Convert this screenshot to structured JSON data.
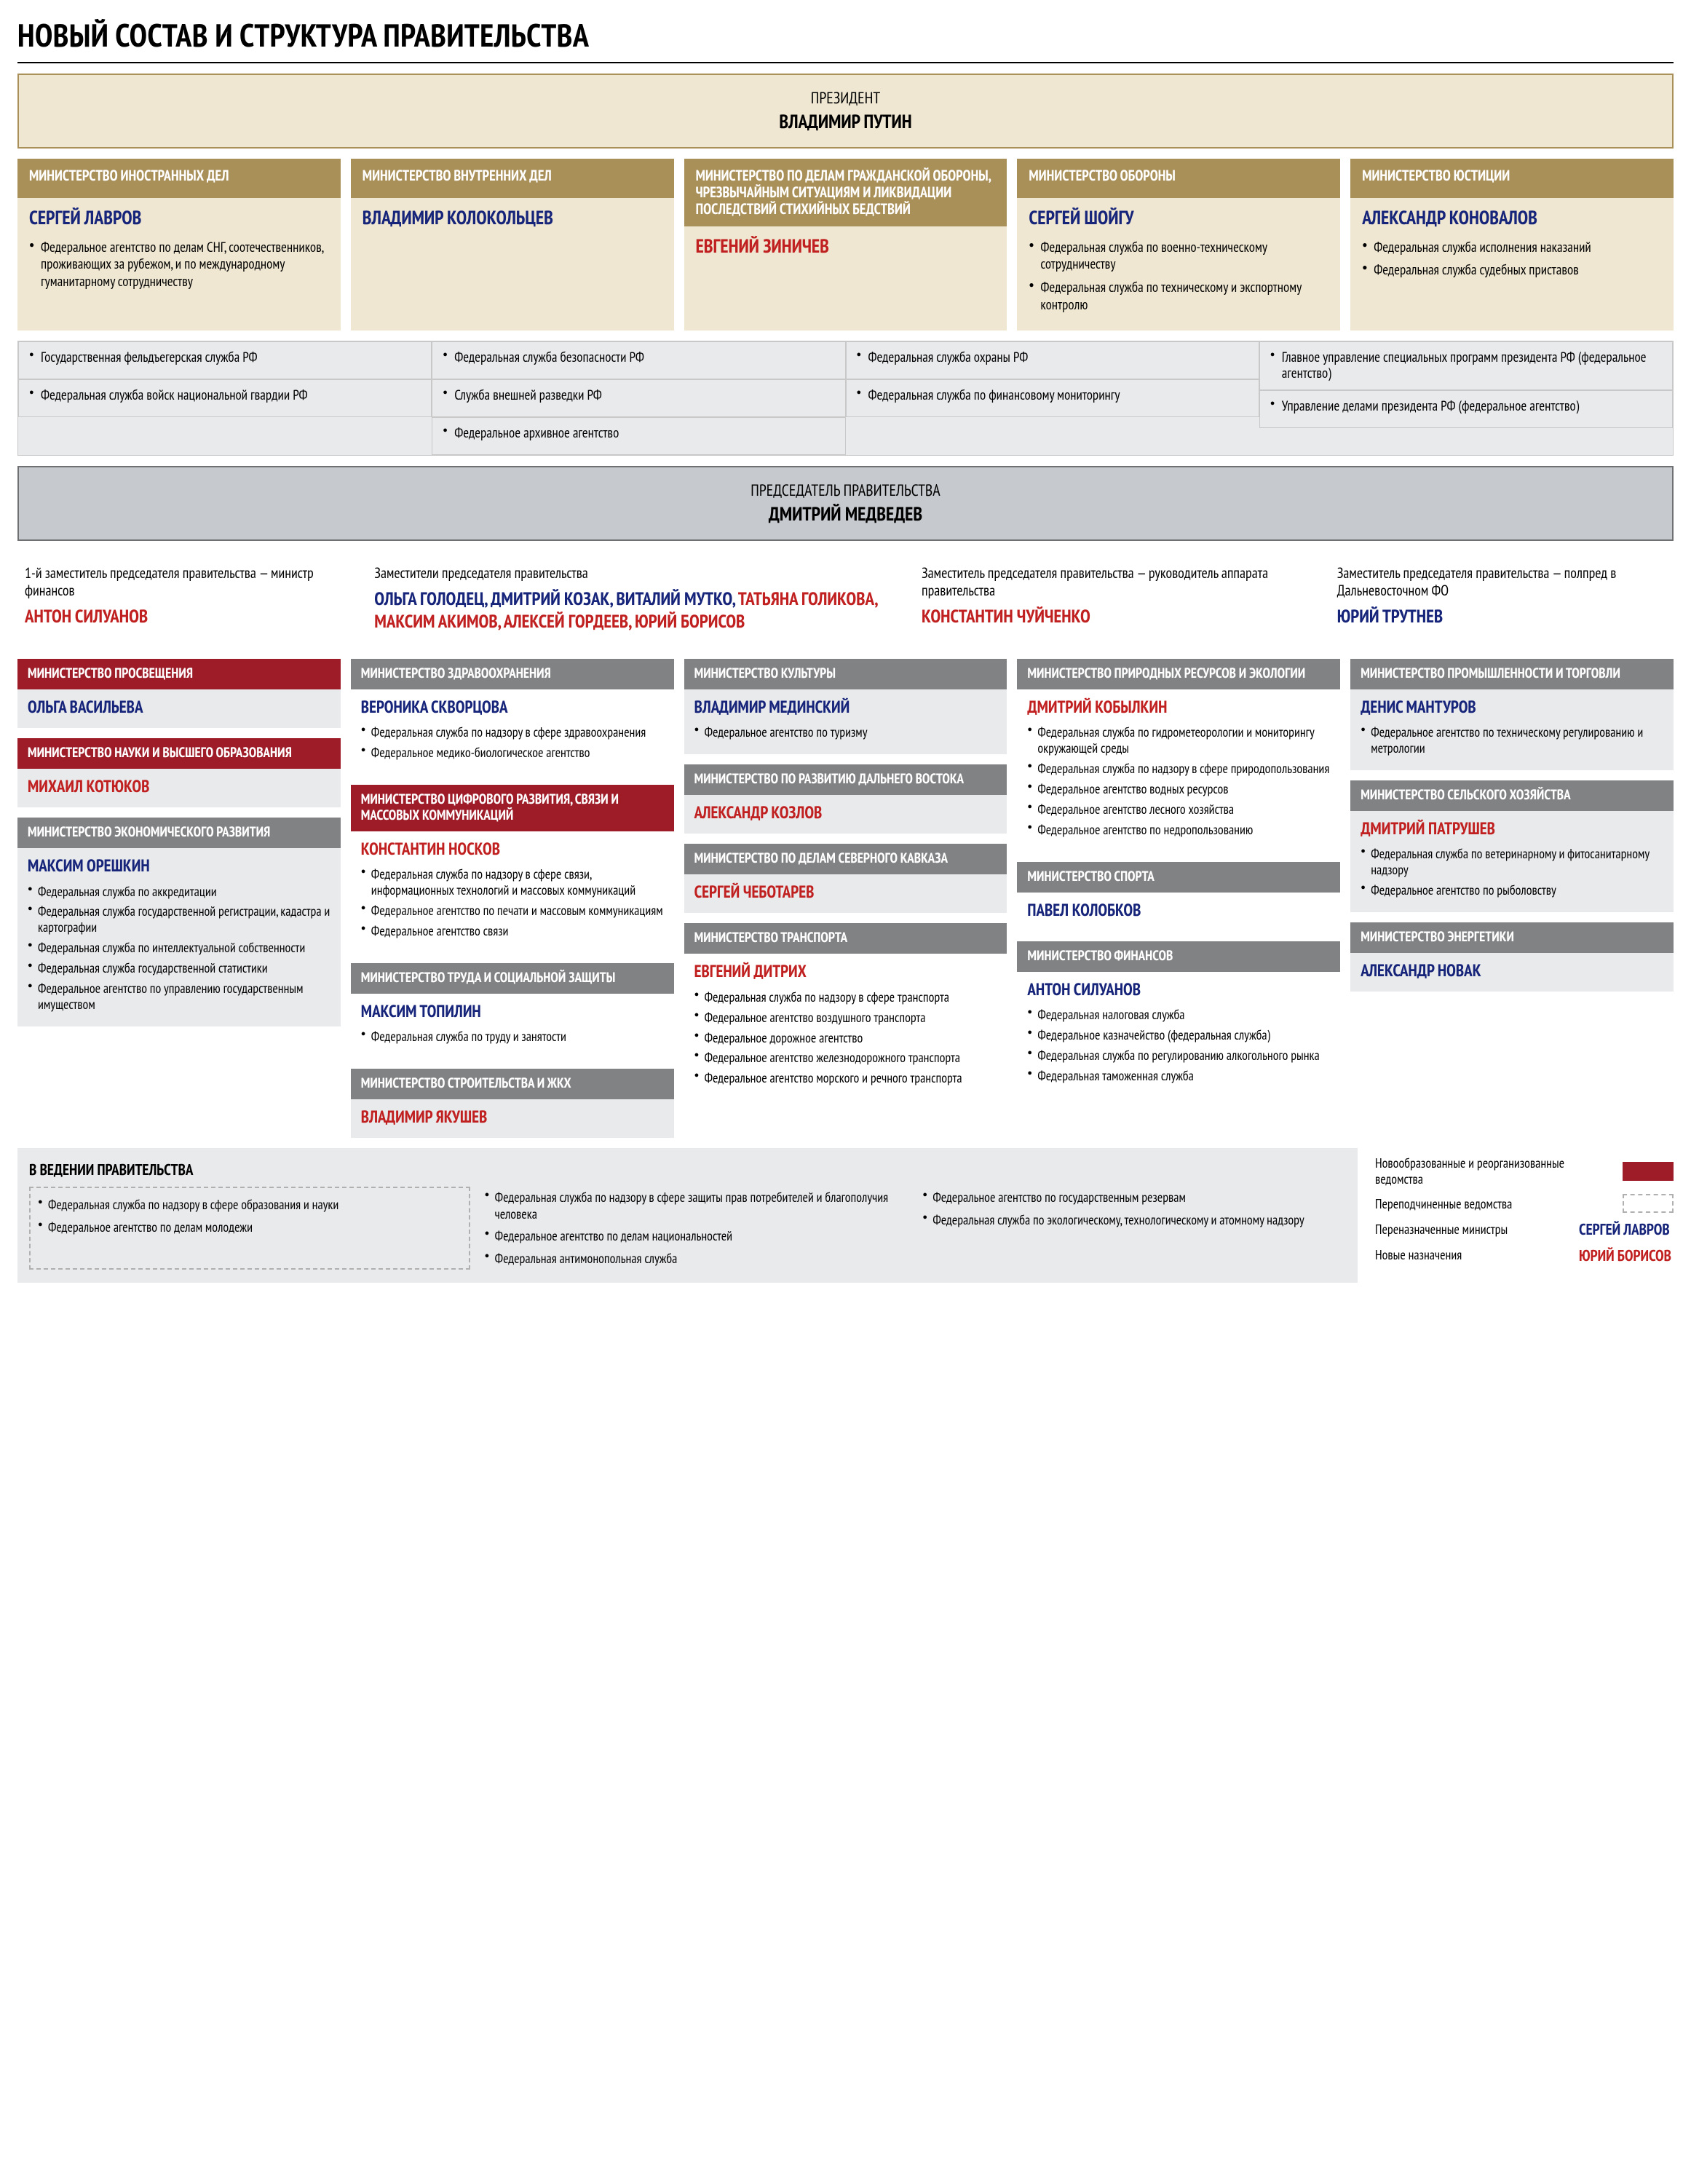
{
  "colors": {
    "gold": "#a98f58",
    "gold_light": "#efe7d1",
    "gold_border": "#a98f58",
    "red": "#9e1b28",
    "red_name": "#c02020",
    "blue": "#16247a",
    "gray_dark": "#6f7072",
    "gray_head": "#818284",
    "gray_banner": "#c6c9cd",
    "gray_body": "#e9eaec",
    "gray_body2": "#e1e2e4",
    "text": "#000000"
  },
  "title": "НОВЫЙ СОСТАВ И СТРУКТУРА ПРАВИТЕЛЬСТВА",
  "president": {
    "role": "ПРЕЗИДЕНТ",
    "name": "ВЛАДИМИР ПУТИН"
  },
  "top_cards": [
    {
      "title": "МИНИСТЕРСТВО ИНОСТРАННЫХ ДЕЛ",
      "name": "СЕРГЕЙ ЛАВРОВ",
      "name_color": "blue",
      "items": [
        "Федеральное агентство по делам СНГ, соотечественников, проживающих за рубежом, и по международному гуманитарному сотрудничеству"
      ]
    },
    {
      "title": "МИНИСТЕРСТВО ВНУТРЕННИХ ДЕЛ",
      "name": "ВЛАДИМИР КОЛОКОЛЬЦЕВ",
      "name_color": "blue",
      "items": []
    },
    {
      "title": "МИНИСТЕРСТВО ПО ДЕЛАМ ГРАЖДАНСКОЙ ОБОРОНЫ, ЧРЕЗВЫЧАЙНЫМ СИТУАЦИЯМ И ЛИКВИДАЦИИ ПОСЛЕДСТВИЙ СТИХИЙНЫХ БЕДСТВИЙ",
      "name": "ЕВГЕНИЙ ЗИНИЧЕВ",
      "name_color": "red",
      "items": []
    },
    {
      "title": "МИНИСТЕРСТВО ОБОРОНЫ",
      "name": "СЕРГЕЙ ШОЙГУ",
      "name_color": "blue",
      "items": [
        "Федеральная служба по военно-техническому сотрудничеству",
        "Федеральная служба по техническому и экспортному контролю"
      ]
    },
    {
      "title": "МИНИСТЕРСТВО ЮСТИЦИИ",
      "name": "АЛЕКСАНДР КОНОВАЛОВ",
      "name_color": "blue",
      "items": [
        "Федеральная служба исполнения наказаний",
        "Федеральная служба судебных приставов"
      ]
    }
  ],
  "strip": [
    [
      "Государственная фельдъегерская служба РФ",
      "Федеральная служба войск национальной гвардии РФ"
    ],
    [
      "Федеральная служба безопасности РФ",
      "Служба внешней разведки РФ",
      "Федеральное архивное агентство"
    ],
    [
      "Федеральная служба охраны РФ",
      "Федеральная служба по финансовому мониторингу"
    ],
    [
      "Главное управление специальных программ президента РФ (федеральное агентство)",
      "Управление делами президента РФ (федеральное агентство)"
    ]
  ],
  "pm": {
    "role": "ПРЕДСЕДАТЕЛЬ ПРАВИТЕЛЬСТВА",
    "name": "ДМИТРИЙ МЕДВЕДЕВ"
  },
  "deputies": [
    {
      "role": "1-й заместитель председателя правительства — министр финансов",
      "names": [
        {
          "t": "АНТОН СИЛУАНОВ",
          "c": "red"
        }
      ]
    },
    {
      "role": "Заместители председателя правительства",
      "names": [
        {
          "t": "ОЛЬГА ГОЛОДЕЦ, ",
          "c": "blue"
        },
        {
          "t": "ДМИТРИЙ КОЗАК, ",
          "c": "blue"
        },
        {
          "t": "ВИТАЛИЙ МУТКО, ",
          "c": "blue"
        },
        {
          "t": "ТАТЬЯНА ГОЛИКОВА, ",
          "c": "red"
        },
        {
          "t": "МАКСИМ АКИМОВ, ",
          "c": "red"
        },
        {
          "t": "АЛЕКСЕЙ ГОРДЕЕВ, ",
          "c": "red"
        },
        {
          "t": "ЮРИЙ БОРИСОВ",
          "c": "red"
        }
      ]
    },
    {
      "role": "Заместитель председателя правительства — руководитель аппарата правительства",
      "names": [
        {
          "t": "КОНСТАНТИН ЧУЙЧЕНКО",
          "c": "red"
        }
      ]
    },
    {
      "role": "Заместитель председателя правительства — полпред в Дальневосточном ФО",
      "names": [
        {
          "t": "ЮРИЙ ТРУТНЕВ",
          "c": "blue"
        }
      ]
    }
  ],
  "ministries": [
    [
      {
        "hstyle": "red",
        "bstyle": "gray",
        "title": "МИНИСТЕРСТВО ПРОСВЕЩЕНИЯ",
        "name": "ОЛЬГА ВАСИЛЬЕВА",
        "nc": "blue",
        "items": []
      },
      {
        "hstyle": "red",
        "bstyle": "gray",
        "title": "МИНИСТЕРСТВО НАУКИ И ВЫСШЕГО ОБРАЗОВАНИЯ",
        "name": "МИХАИЛ КОТЮКОВ",
        "nc": "red",
        "items": []
      },
      {
        "hstyle": "gray",
        "bstyle": "gray",
        "title": "МИНИСТЕРСТВО ЭКОНОМИЧЕСКОГО РАЗВИТИЯ",
        "name": "МАКСИМ ОРЕШКИН",
        "nc": "blue",
        "items": [
          "Федеральная служба по аккредитации",
          "Федеральная служба государственной регистрации, кадастра и картографии",
          "Федеральная служба по интеллектуальной собственности",
          "Федеральная служба государственной статистики",
          "Федеральное агентство по управлению государственным имуществом"
        ]
      }
    ],
    [
      {
        "hstyle": "gray",
        "bstyle": "white",
        "title": "МИНИСТЕРСТВО ЗДРАВООХРАНЕНИЯ",
        "name": "ВЕРОНИКА СКВОРЦОВА",
        "nc": "blue",
        "items": [
          "Федеральная служба по надзору в сфере здравоохранения",
          "Федеральное медико-биологическое агентство"
        ]
      },
      {
        "hstyle": "red",
        "bstyle": "white",
        "title": "МИНИСТЕРСТВО ЦИФРОВОГО РАЗВИТИЯ, СВЯЗИ И МАССОВЫХ КОММУНИКАЦИЙ",
        "name": "КОНСТАНТИН НОСКОВ",
        "nc": "red",
        "items": [
          "Федеральная служба по надзору в сфере связи, информационных технологий и массовых коммуникаций",
          "Федеральное агентство по печати и массовым коммуникациям",
          "Федеральное агентство связи"
        ]
      },
      {
        "hstyle": "gray",
        "bstyle": "white",
        "title": "МИНИСТЕРСТВО ТРУДА И СОЦИАЛЬНОЙ ЗАЩИТЫ",
        "name": "МАКСИМ ТОПИЛИН",
        "nc": "blue",
        "items": [
          "Федеральная служба по труду и занятости"
        ]
      },
      {
        "hstyle": "gray",
        "bstyle": "gray",
        "title": "МИНИСТЕРСТВО СТРОИТЕЛЬСТВА И ЖКХ",
        "name": "ВЛАДИМИР ЯКУШЕВ",
        "nc": "red",
        "items": []
      }
    ],
    [
      {
        "hstyle": "gray",
        "bstyle": "gray",
        "title": "МИНИСТЕРСТВО КУЛЬТУРЫ",
        "name": "ВЛАДИМИР МЕДИНСКИЙ",
        "nc": "blue",
        "items": [
          "Федеральное агентство по туризму"
        ]
      },
      {
        "hstyle": "gray",
        "bstyle": "gray",
        "title": "МИНИСТЕРСТВО ПО РАЗВИТИЮ ДАЛЬНЕГО ВОСТОКА",
        "name": "АЛЕКСАНДР КОЗЛОВ",
        "nc": "red",
        "items": []
      },
      {
        "hstyle": "gray",
        "bstyle": "gray",
        "title": "МИНИСТЕРСТВО ПО ДЕЛАМ СЕВЕРНОГО КАВКАЗА",
        "name": "СЕРГЕЙ ЧЕБОТАРЕВ",
        "nc": "red",
        "items": []
      },
      {
        "hstyle": "gray",
        "bstyle": "white",
        "title": "МИНИСТЕРСТВО ТРАНСПОРТА",
        "name": "ЕВГЕНИЙ ДИТРИХ",
        "nc": "red",
        "items": [
          "Федеральная служба по надзору в сфере транспорта",
          "Федеральное агентство воздушного транспорта",
          "Федеральное дорожное агентство",
          "Федеральное агентство железнодорожного транспорта",
          "Федеральное агентство морского и речного транспорта"
        ]
      }
    ],
    [
      {
        "hstyle": "gray",
        "bstyle": "white",
        "title": "МИНИСТЕРСТВО ПРИРОДНЫХ РЕСУРСОВ И ЭКОЛОГИИ",
        "name": "ДМИТРИЙ КОБЫЛКИН",
        "nc": "red",
        "items": [
          "Федеральная служба по гидрометеорологии и мониторингу окружающей среды",
          "Федеральная служба по надзору в сфере природопользования",
          "Федеральное агентство водных ресурсов",
          "Федеральное агентство лесного хозяйства",
          "Федеральное агентство по недропользованию"
        ]
      },
      {
        "hstyle": "gray",
        "bstyle": "white",
        "title": "МИНИСТЕРСТВО СПОРТА",
        "name": "ПАВЕЛ КОЛОБКОВ",
        "nc": "blue",
        "items": []
      },
      {
        "hstyle": "gray",
        "bstyle": "white",
        "title": "МИНИСТЕРСТВО ФИНАНСОВ",
        "name": "АНТОН СИЛУАНОВ",
        "nc": "blue",
        "items": [
          "Федеральная налоговая служба",
          "Федеральное казначейство (федеральная служба)",
          "Федеральная служба по регулированию алкогольного рынка",
          "Федеральная таможенная служба"
        ]
      }
    ],
    [
      {
        "hstyle": "gray",
        "bstyle": "gray",
        "title": "МИНИСТЕРСТВО ПРОМЫШЛЕННОСТИ И ТОРГОВЛИ",
        "name": "ДЕНИС МАНТУРОВ",
        "nc": "blue",
        "items": [
          "Федеральное агентство по техническому регулированию и метрологии"
        ]
      },
      {
        "hstyle": "gray",
        "bstyle": "gray",
        "title": "МИНИСТЕРСТВО СЕЛЬСКОГО ХОЗЯЙСТВА",
        "name": "ДМИТРИЙ ПАТРУШЕВ",
        "nc": "red",
        "items": [
          "Федеральная служба по ветеринарному и фитосанитарному надзору",
          "Федеральное агентство по рыболовству"
        ]
      },
      {
        "hstyle": "gray",
        "bstyle": "gray",
        "title": "МИНИСТЕРСТВО ЭНЕРГЕТИКИ",
        "name": "АЛЕКСАНДР НОВАК",
        "nc": "blue",
        "items": []
      }
    ]
  ],
  "bottom": {
    "title": "В ВЕДЕНИИ ПРАВИТЕЛЬСТВА",
    "cols": [
      [
        "Федеральная служба по надзору в сфере образования и науки",
        "Федеральное агентство по делам молодежи"
      ],
      [
        "Федеральная служба по надзору в сфере защиты прав потребителей и благополучия человека",
        "Федеральное агентство по делам национальностей",
        "Федеральная антимонопольная служба"
      ],
      [
        "Федеральное агентство по государственным резервам",
        "Федеральная служба по экологическому, технологическому и атомному надзору"
      ]
    ]
  },
  "legend": [
    {
      "label": "Новообразованные и реорганизованные ведомства",
      "type": "swatch",
      "color": "red"
    },
    {
      "label": "Переподчиненные ведомства",
      "type": "dashed"
    },
    {
      "label": "Переназначенные министры",
      "type": "name",
      "text": "СЕРГЕЙ ЛАВРОВ",
      "c": "blue"
    },
    {
      "label": "Новые назначения",
      "type": "name",
      "text": "ЮРИЙ БОРИСОВ",
      "c": "red"
    }
  ]
}
